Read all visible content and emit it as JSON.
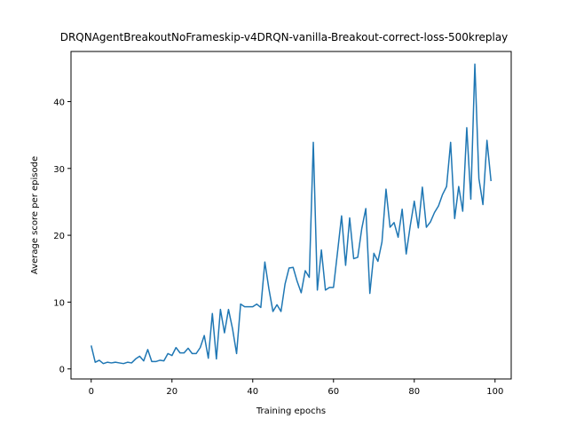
{
  "chart_data": {
    "type": "line",
    "title": "DRQNAgentBreakoutNoFrameskip-v4DRQN-vanilla-Breakout-correct-loss-500kreplay",
    "xlabel": "Training epochs",
    "ylabel": "Average score per episode",
    "xlim": [
      -5,
      104
    ],
    "ylim": [
      -1.5,
      47.5
    ],
    "xticks": [
      0,
      20,
      40,
      60,
      80,
      100
    ],
    "yticks": [
      0,
      10,
      20,
      30,
      40
    ],
    "grid": false,
    "legend": "none",
    "series": [
      {
        "color": "#1f77b4",
        "x": [
          0,
          1,
          2,
          3,
          4,
          5,
          6,
          7,
          8,
          9,
          10,
          11,
          12,
          13,
          14,
          15,
          16,
          17,
          18,
          19,
          20,
          21,
          22,
          23,
          24,
          25,
          26,
          27,
          28,
          29,
          30,
          31,
          32,
          33,
          34,
          35,
          36,
          37,
          38,
          39,
          40,
          41,
          42,
          43,
          44,
          45,
          46,
          47,
          48,
          49,
          50,
          51,
          52,
          53,
          54,
          55,
          56,
          57,
          58,
          59,
          60,
          61,
          62,
          63,
          64,
          65,
          66,
          67,
          68,
          69,
          70,
          71,
          72,
          73,
          74,
          75,
          76,
          77,
          78,
          79,
          80,
          81,
          82,
          83,
          84,
          85,
          86,
          87,
          88,
          89,
          90,
          91,
          92,
          93,
          94,
          95,
          96,
          97,
          98,
          99
        ],
        "y": [
          3.5,
          1.0,
          1.3,
          0.8,
          1.0,
          0.9,
          1.0,
          0.9,
          0.8,
          1.0,
          0.9,
          1.5,
          1.9,
          1.2,
          2.9,
          1.1,
          1.1,
          1.3,
          1.2,
          2.3,
          2.0,
          3.2,
          2.4,
          2.4,
          3.1,
          2.3,
          2.3,
          3.2,
          5.0,
          1.6,
          8.3,
          1.5,
          8.9,
          5.4,
          8.9,
          6.0,
          2.3,
          9.7,
          9.3,
          9.3,
          9.3,
          9.7,
          9.2,
          16.0,
          12.0,
          8.6,
          9.6,
          8.6,
          12.7,
          15.1,
          15.2,
          13.1,
          11.4,
          14.7,
          13.7,
          33.9,
          11.8,
          17.8,
          11.8,
          12.2,
          12.2,
          17.5,
          22.9,
          15.5,
          22.6,
          16.5,
          16.7,
          21.0,
          24.0,
          11.3,
          17.3,
          16.1,
          19.0,
          26.9,
          21.2,
          21.9,
          19.7,
          23.9,
          17.2,
          21.4,
          25.1,
          21.1,
          27.2,
          21.2,
          22.0,
          23.4,
          24.4,
          26.1,
          27.3,
          33.9,
          22.5,
          27.3,
          23.6,
          36.1,
          25.4,
          45.6,
          28.5,
          24.6,
          34.2,
          28.1
        ]
      }
    ]
  }
}
